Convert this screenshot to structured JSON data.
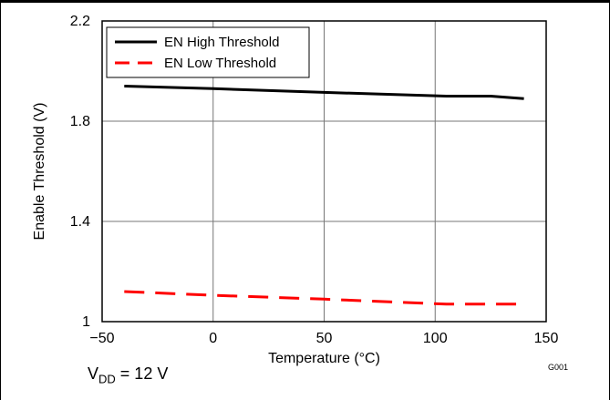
{
  "chart_data": {
    "type": "line",
    "xlabel": "Temperature (°C)",
    "ylabel": "Enable Threshold (V)",
    "xlim": [
      -50,
      150
    ],
    "ylim": [
      1,
      2.2
    ],
    "xticks": [
      "−50",
      "0",
      "50",
      "100",
      "150"
    ],
    "yticks": [
      "1",
      "1.4",
      "1.8",
      "2.2"
    ],
    "grid": true,
    "legend_position": "top-left",
    "series": [
      {
        "name": "EN High Threshold",
        "color": "#000000",
        "dash": "solid",
        "x": [
          -40,
          0,
          50,
          105,
          125,
          140
        ],
        "y": [
          1.94,
          1.93,
          1.915,
          1.9,
          1.9,
          1.89
        ]
      },
      {
        "name": "EN Low Threshold",
        "color": "#ff0000",
        "dash": "dashed",
        "x": [
          -40,
          0,
          50,
          105,
          125,
          140
        ],
        "y": [
          1.12,
          1.105,
          1.09,
          1.07,
          1.07,
          1.07
        ]
      }
    ],
    "graph_id": "G001"
  },
  "caption": {
    "main": "V",
    "sub": "DD",
    "rest": " = 12 V"
  }
}
